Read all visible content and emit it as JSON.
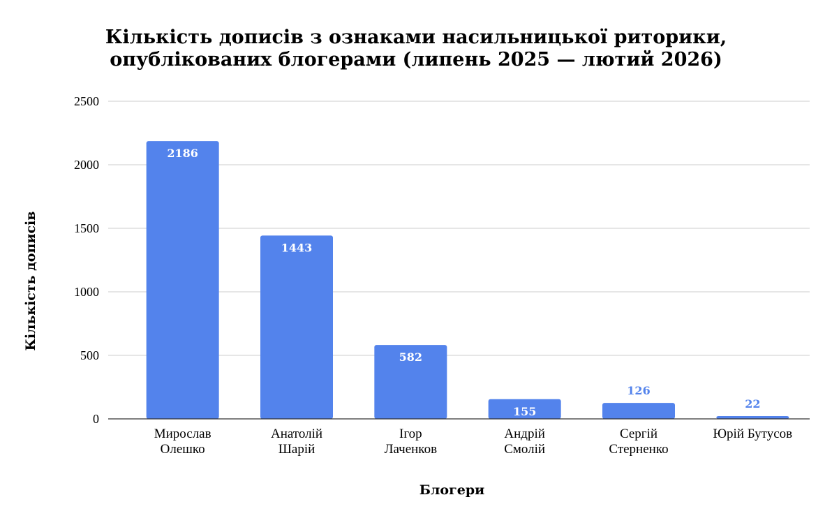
{
  "chart_data": {
    "type": "bar",
    "title_lines": [
      "Кількість дописів з ознаками насильницької риторики,",
      "опублікованих блогерами (липень 2025 — лютий 2026)"
    ],
    "xlabel": "Блогери",
    "ylabel": "Кількість дописів",
    "categories": [
      [
        "Мирослав",
        "Олешко"
      ],
      [
        "Анатолій",
        "Шарій"
      ],
      [
        "Ігор",
        "Лаченков"
      ],
      [
        "Андрій",
        "Смолій"
      ],
      [
        "Сергій",
        "Стерненко"
      ],
      [
        "Юрій Бутусов"
      ]
    ],
    "values": [
      2186,
      1443,
      582,
      155,
      126,
      22
    ],
    "ylim": [
      0,
      2500
    ],
    "yticks": [
      0,
      500,
      1000,
      1500,
      2000,
      2500
    ],
    "grid": true,
    "legend": "none",
    "colors": {
      "bar": "#5383ec",
      "label_inside": "#ffffff",
      "label_outside": "#5383ec",
      "grid": "#cccccc"
    }
  }
}
